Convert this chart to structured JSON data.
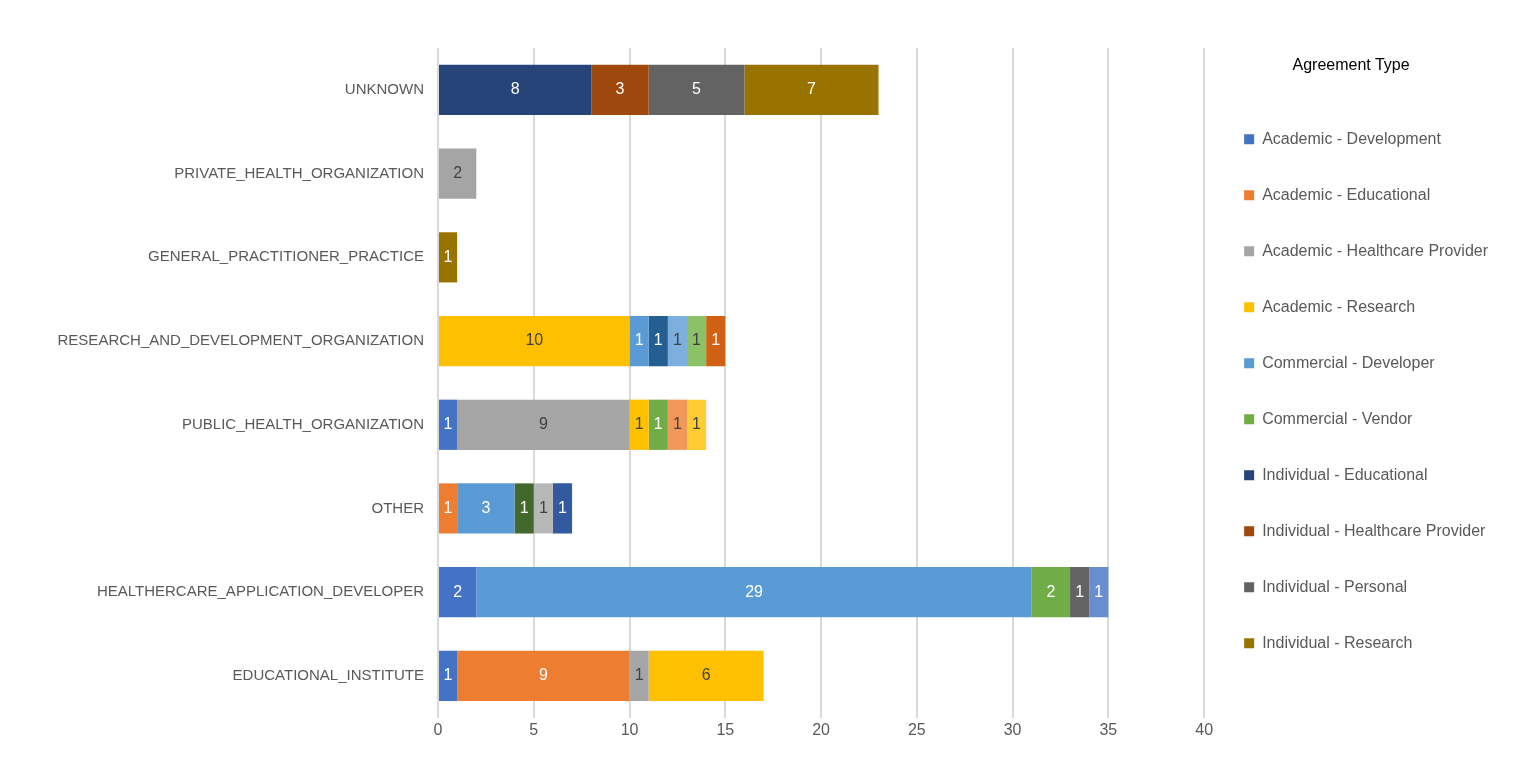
{
  "chart_data": {
    "type": "bar",
    "orientation": "horizontal",
    "stacked": true,
    "data_labels": true,
    "grid": "x",
    "legend": "right",
    "legend_title": "Agreement Type",
    "categories": [
      "UNKNOWN",
      "PRIVATE_HEALTH_ORGANIZATION",
      "GENERAL_PRACTITIONER_PRACTICE",
      "RESEARCH_AND_DEVELOPMENT_ORGANIZATION",
      "PUBLIC_HEALTH_ORGANIZATION",
      "OTHER",
      "HEALTHERCARE_APPLICATION_DEVELOPER",
      "EDUCATIONAL_INSTITUTE"
    ],
    "xlim": [
      0,
      40
    ],
    "xticks": [
      0,
      5,
      10,
      15,
      20,
      25,
      30,
      35,
      40
    ],
    "series": [
      {
        "name": "Academic - Development",
        "color": "#4472c4",
        "values": [
          null,
          null,
          null,
          null,
          1,
          null,
          2,
          1
        ]
      },
      {
        "name": "Academic - Educational",
        "color": "#ed7d31",
        "values": [
          null,
          null,
          null,
          null,
          null,
          1,
          null,
          9
        ]
      },
      {
        "name": "Academic - Healthcare Provider",
        "color": "#a5a5a5",
        "values": [
          null,
          2,
          null,
          null,
          9,
          null,
          null,
          1
        ]
      },
      {
        "name": "Academic - Research",
        "color": "#ffc000",
        "values": [
          null,
          null,
          null,
          10,
          1,
          null,
          null,
          6
        ]
      },
      {
        "name": "Commercial - Developer",
        "color": "#5b9bd5",
        "values": [
          null,
          null,
          null,
          1,
          null,
          3,
          29,
          null
        ]
      },
      {
        "name": "Commercial - Vendor",
        "color": "#70ad47",
        "values": [
          null,
          null,
          null,
          null,
          1,
          null,
          2,
          null
        ]
      },
      {
        "name": "Individual - Educational",
        "color": "#264478",
        "values": [
          8,
          null,
          null,
          null,
          null,
          null,
          null,
          null
        ]
      },
      {
        "name": "Individual - Healthcare Provider",
        "color": "#9e480e",
        "values": [
          3,
          null,
          null,
          null,
          null,
          null,
          null,
          null
        ]
      },
      {
        "name": "Individual - Personal",
        "color": "#636363",
        "values": [
          5,
          null,
          null,
          null,
          null,
          null,
          1,
          null
        ]
      },
      {
        "name": "Individual - Research",
        "color": "#997300",
        "values": [
          7,
          null,
          1,
          null,
          null,
          null,
          null,
          null
        ]
      },
      {
        "color": "#255e91",
        "values": [
          null,
          null,
          null,
          1,
          null,
          null,
          null,
          null
        ]
      },
      {
        "color": "#43682b",
        "values": [
          null,
          null,
          null,
          null,
          null,
          1,
          null,
          null
        ]
      },
      {
        "color": "#698ed0",
        "values": [
          null,
          null,
          null,
          null,
          null,
          null,
          1,
          null
        ]
      },
      {
        "color": "#f1975a",
        "values": [
          null,
          null,
          null,
          null,
          1,
          null,
          null,
          null
        ]
      },
      {
        "color": "#b7b7b7",
        "values": [
          null,
          null,
          null,
          null,
          null,
          1,
          null,
          null
        ]
      },
      {
        "color": "#ffcd33",
        "values": [
          null,
          null,
          null,
          null,
          1,
          null,
          null,
          null
        ]
      },
      {
        "color": "#7cafdd",
        "values": [
          null,
          null,
          null,
          1,
          null,
          null,
          null,
          null
        ]
      },
      {
        "color": "#8cc168",
        "values": [
          null,
          null,
          null,
          1,
          null,
          null,
          null,
          null
        ]
      },
      {
        "color": "#335aa1",
        "values": [
          null,
          null,
          null,
          null,
          null,
          1,
          null,
          null
        ]
      },
      {
        "color": "#d26012",
        "values": [
          null,
          null,
          null,
          1,
          null,
          null,
          null,
          null
        ]
      }
    ]
  }
}
